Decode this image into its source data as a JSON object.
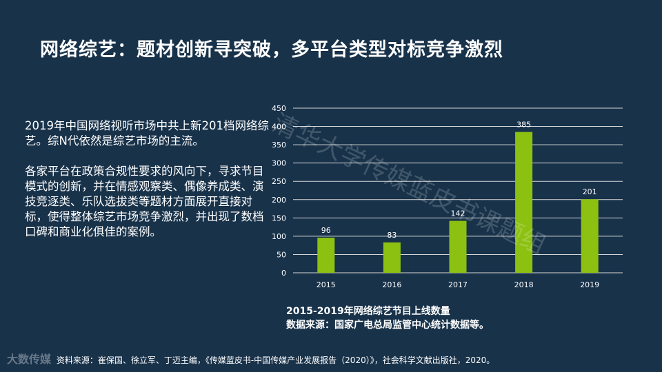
{
  "title": "网络综艺：题材创新寻突破，多平台类型对标竞争激烈",
  "body": {
    "paragraph1": "2019年中国网络视听市场中共上新201档网络综艺。综N代依然是综艺市场的主流。",
    "paragraph2": "各家平台在政策合规性要求的风向下，寻求节目模式的创新，并在情感观察类、偶像养成类、演技竞逐类、乐队选拔类等题材方面展开直接对标，使得整体综艺市场竞争激烈，并出现了数档口碑和商业化俱佳的案例。"
  },
  "chart_data": {
    "type": "bar",
    "title": "",
    "xlabel": "",
    "ylabel": "",
    "categories": [
      "2015",
      "2016",
      "2017",
      "2018",
      "2019"
    ],
    "values": [
      96,
      83,
      142,
      385,
      201
    ],
    "yticks": [
      "0",
      "50",
      "100",
      "150",
      "200",
      "250",
      "300",
      "350",
      "400",
      "450"
    ],
    "ylim": [
      0,
      450
    ],
    "grid": true,
    "bar_color": "#8cc112",
    "grid_color": "#d8d8d8"
  },
  "caption": {
    "line1": "2015-2019年网络综艺节目上线数量",
    "line2": "数据来源：国家广电总局监管中心统计数据等。"
  },
  "watermark": "清华大学传媒蓝皮书课题组",
  "footer": {
    "logo": "大数传媒",
    "source": "资料来源：崔保国、徐立军、丁迈主编，《传媒蓝皮书-中国传媒产业发展报告（2020）》，社会科学文献出版社，2020。"
  }
}
